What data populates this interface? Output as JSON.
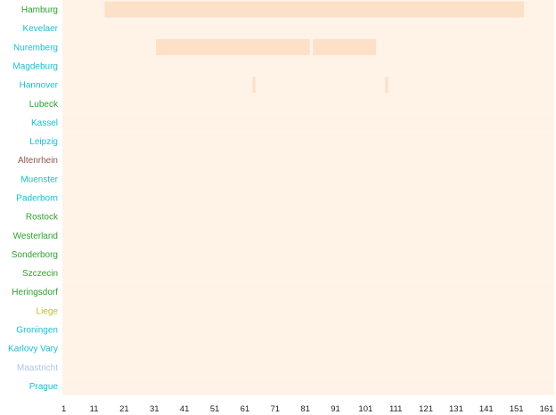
{
  "chart_data": {
    "type": "heatmap",
    "title": "",
    "xlabel": "",
    "ylabel": "",
    "x_range": [
      1,
      163
    ],
    "x_ticks": [
      "1",
      "11",
      "21",
      "31",
      "41",
      "51",
      "61",
      "71",
      "81",
      "91",
      "101",
      "111",
      "121",
      "131",
      "141",
      "151",
      "161"
    ],
    "grid": false,
    "legend": "none",
    "colors": {
      "background": "#fff4ea",
      "cell_low": "#fff3e8",
      "cell_high": "#fde0c8"
    },
    "rows": [
      {
        "label": "Hamburg",
        "label_color": "#2ca02c",
        "highlights": [
          [
            15,
            153
          ]
        ]
      },
      {
        "label": "Kevelaer",
        "label_color": "#17becf",
        "highlights": []
      },
      {
        "label": "Nuremberg",
        "label_color": "#17becf",
        "highlights": [
          [
            32,
            82
          ],
          [
            84,
            104
          ]
        ]
      },
      {
        "label": "Magdeburg",
        "label_color": "#17becf",
        "highlights": []
      },
      {
        "label": "Hannover",
        "label_color": "#17becf",
        "highlights": [
          [
            64,
            64
          ],
          [
            108,
            108
          ]
        ]
      },
      {
        "label": "Lubeck",
        "label_color": "#2ca02c",
        "highlights": []
      },
      {
        "label": "Kassel",
        "label_color": "#17becf",
        "highlights": []
      },
      {
        "label": "Leipzig",
        "label_color": "#17becf",
        "highlights": []
      },
      {
        "label": "Altenrhein",
        "label_color": "#8c564b",
        "highlights": []
      },
      {
        "label": "Muenster",
        "label_color": "#17becf",
        "highlights": []
      },
      {
        "label": "Paderborn",
        "label_color": "#17becf",
        "highlights": []
      },
      {
        "label": "Rostock",
        "label_color": "#2ca02c",
        "highlights": []
      },
      {
        "label": "Westerland",
        "label_color": "#2ca02c",
        "highlights": []
      },
      {
        "label": "Sonderborg",
        "label_color": "#2ca02c",
        "highlights": []
      },
      {
        "label": "Szczecin",
        "label_color": "#2ca02c",
        "highlights": []
      },
      {
        "label": "Heringsdorf",
        "label_color": "#2ca02c",
        "highlights": []
      },
      {
        "label": "Liege",
        "label_color": "#bcbd22",
        "highlights": []
      },
      {
        "label": "Groningen",
        "label_color": "#17becf",
        "highlights": []
      },
      {
        "label": "Karlovy Vary",
        "label_color": "#17becf",
        "highlights": []
      },
      {
        "label": "Maastricht",
        "label_color": "#aec7e8",
        "highlights": []
      },
      {
        "label": "Prague",
        "label_color": "#17becf",
        "highlights": []
      }
    ]
  }
}
